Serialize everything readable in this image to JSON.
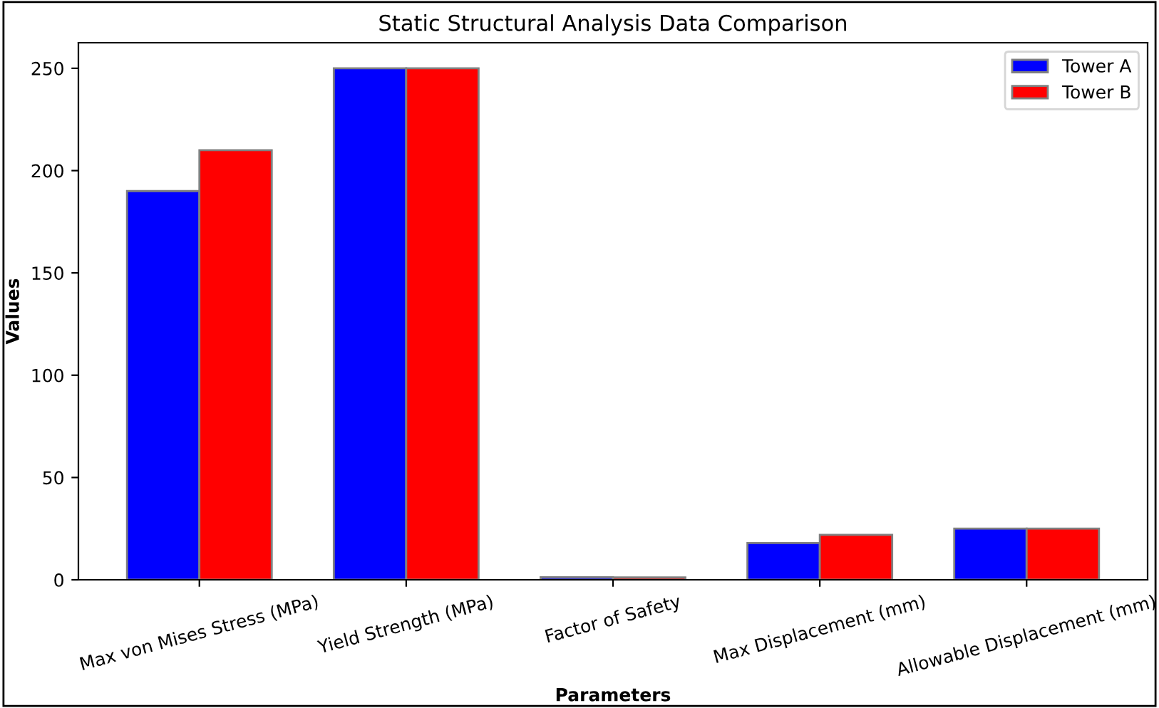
{
  "chart_data": {
    "type": "bar",
    "title": "Static Structural Analysis Data Comparison",
    "xlabel": "Parameters",
    "ylabel": "Values",
    "categories": [
      "Max von Mises Stress (MPa)",
      "Yield Strength (MPa)",
      "Factor of Safety",
      "Max Displacement (mm)",
      "Allowable Displacement (mm)"
    ],
    "series": [
      {
        "name": "Tower A",
        "color": "#0000ff",
        "values": [
          190,
          250,
          1.3,
          18,
          25
        ]
      },
      {
        "name": "Tower B",
        "color": "#ff0000",
        "values": [
          210,
          250,
          1.2,
          22,
          25
        ]
      }
    ],
    "ylim": [
      0,
      262.5
    ],
    "yticks": [
      0,
      50,
      100,
      150,
      200,
      250
    ],
    "grid": false,
    "legend": "top right"
  }
}
